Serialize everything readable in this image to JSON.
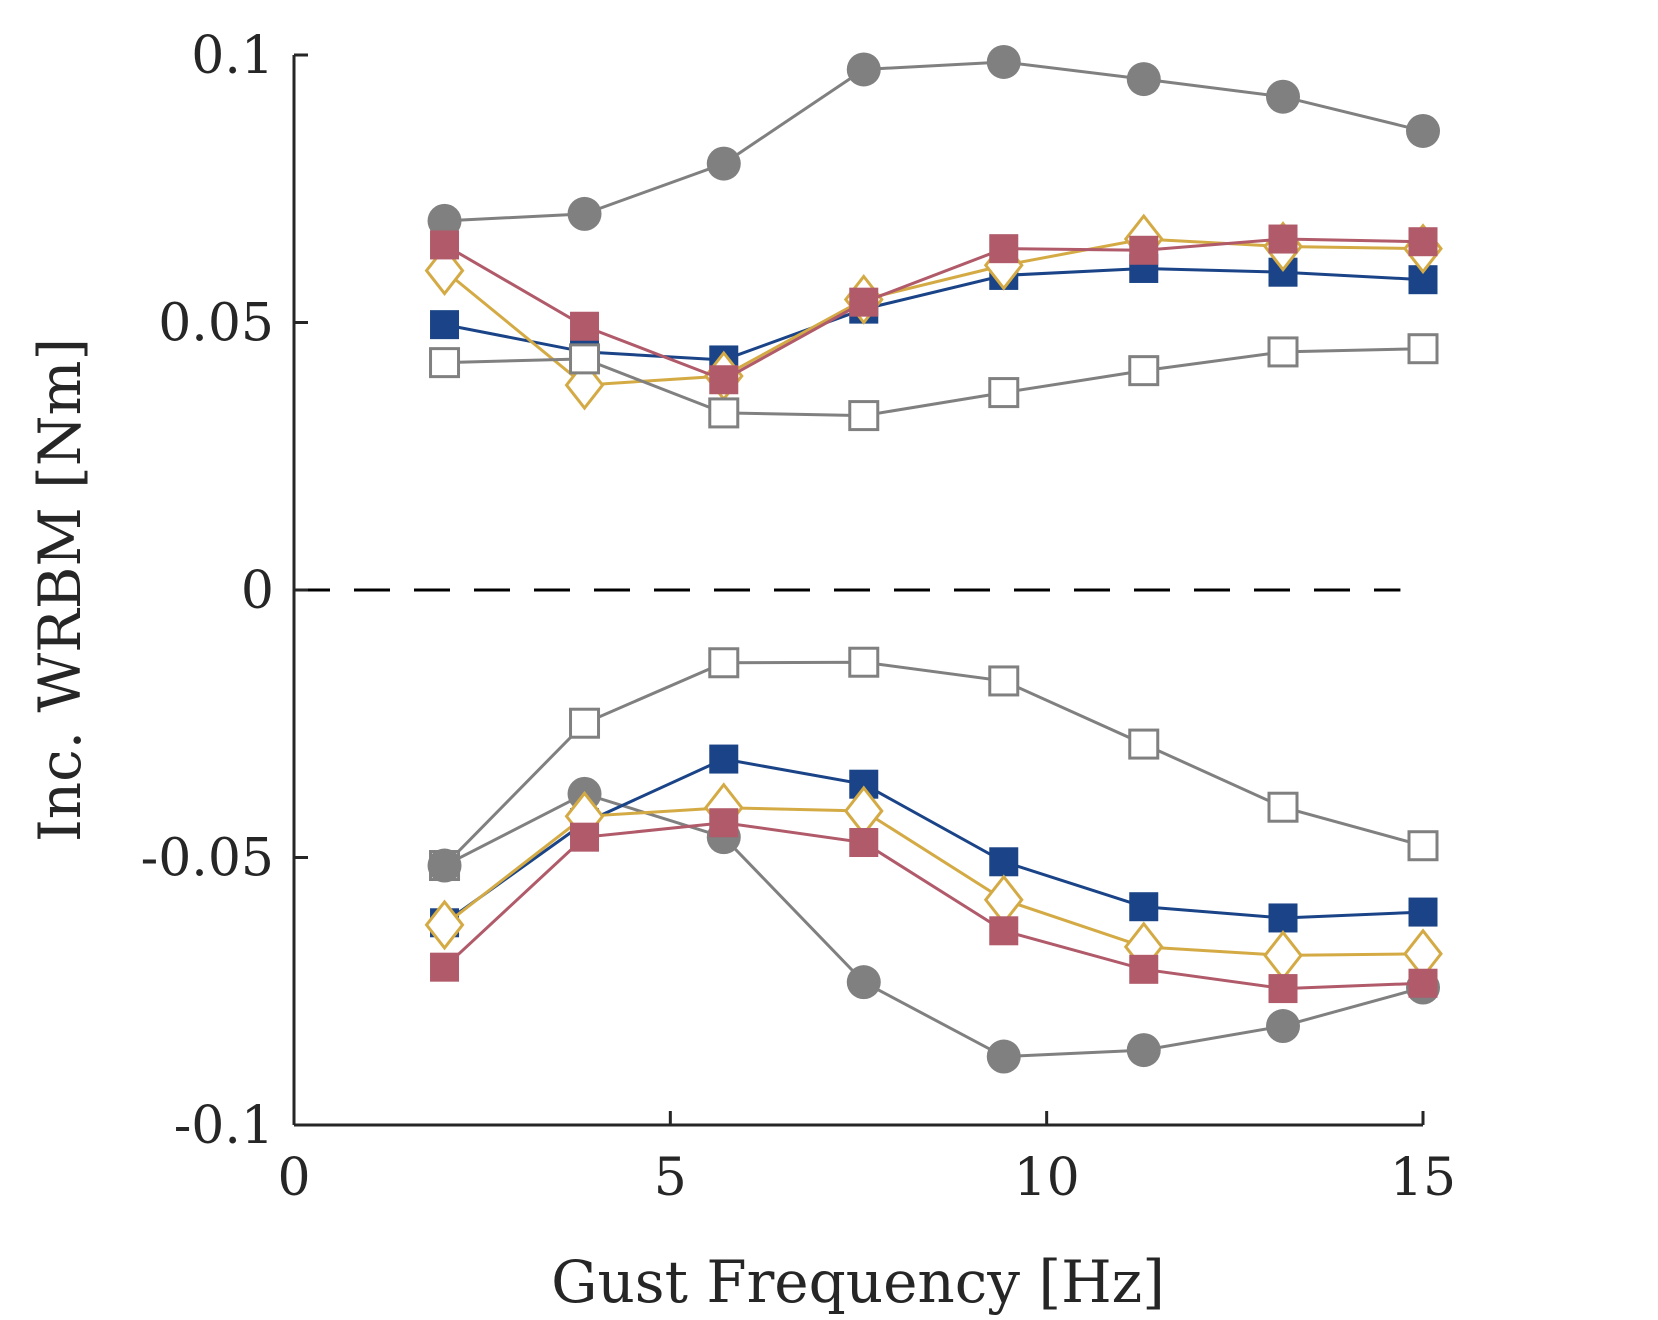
{
  "chart_data": {
    "type": "line",
    "xlabel": "Gust Frequency [Hz]",
    "ylabel": "Inc. WRBM [Nm]",
    "xlim": [
      0,
      15
    ],
    "ylim": [
      -0.1,
      0.1
    ],
    "xticks": [
      0,
      5,
      10,
      15
    ],
    "xtick_labels": [
      "0",
      "5",
      "10",
      "15"
    ],
    "yticks": [
      -0.1,
      -0.05,
      0,
      0.05,
      0.1
    ],
    "ytick_labels": [
      "-0.1",
      "-0.05",
      "0",
      "0.05",
      "0.1"
    ],
    "grid": false,
    "legend": "none",
    "zero_line": {
      "y": 0,
      "style": "dashed",
      "color": "#000000",
      "x": [
        0,
        14.7
      ]
    },
    "x": [
      2,
      3.86,
      5.71,
      7.57,
      9.43,
      11.29,
      13.14,
      15
    ],
    "series": [
      {
        "group": "upper",
        "marker": "circle",
        "filled": true,
        "color": "#808080",
        "values": [
          0.069,
          0.0703,
          0.0797,
          0.0973,
          0.0987,
          0.0955,
          0.0922,
          0.0858
        ]
      },
      {
        "group": "upper",
        "marker": "square",
        "filled": true,
        "color": "#1a4487",
        "values": [
          0.0496,
          0.0445,
          0.043,
          0.0525,
          0.0588,
          0.0601,
          0.0594,
          0.058
        ]
      },
      {
        "group": "upper",
        "marker": "diamond",
        "filled": false,
        "color": "#d4aa45",
        "values": [
          0.0597,
          0.0383,
          0.04,
          0.0543,
          0.0607,
          0.0656,
          0.0642,
          0.0638
        ]
      },
      {
        "group": "upper",
        "marker": "square",
        "filled": true,
        "color": "#b05a6a",
        "values": [
          0.0645,
          0.0493,
          0.0393,
          0.0538,
          0.0638,
          0.0635,
          0.0656,
          0.0651
        ]
      },
      {
        "group": "upper",
        "marker": "square",
        "filled": false,
        "color": "#808080",
        "values": [
          0.0425,
          0.0432,
          0.0331,
          0.0326,
          0.0369,
          0.041,
          0.0445,
          0.0451
        ]
      },
      {
        "group": "lower",
        "marker": "square",
        "filled": false,
        "color": "#808080",
        "values": [
          -0.0515,
          -0.0249,
          -0.0136,
          -0.0135,
          -0.017,
          -0.0288,
          -0.0406,
          -0.0478
        ]
      },
      {
        "group": "lower",
        "marker": "circle",
        "filled": true,
        "color": "#808080",
        "values": [
          -0.0515,
          -0.0381,
          -0.0462,
          -0.0733,
          -0.0872,
          -0.086,
          -0.0815,
          -0.0743
        ]
      },
      {
        "group": "lower",
        "marker": "square",
        "filled": true,
        "color": "#1a4487",
        "values": [
          -0.0622,
          -0.0435,
          -0.0316,
          -0.0363,
          -0.0508,
          -0.0592,
          -0.0613,
          -0.0602
        ]
      },
      {
        "group": "lower",
        "marker": "diamond",
        "filled": false,
        "color": "#d4aa45",
        "values": [
          -0.0626,
          -0.0423,
          -0.0407,
          -0.0413,
          -0.0579,
          -0.0667,
          -0.0683,
          -0.068
        ]
      },
      {
        "group": "lower",
        "marker": "square",
        "filled": true,
        "color": "#b05a6a",
        "values": [
          -0.0705,
          -0.0462,
          -0.0435,
          -0.0472,
          -0.0637,
          -0.0709,
          -0.0745,
          -0.0735
        ]
      }
    ]
  }
}
